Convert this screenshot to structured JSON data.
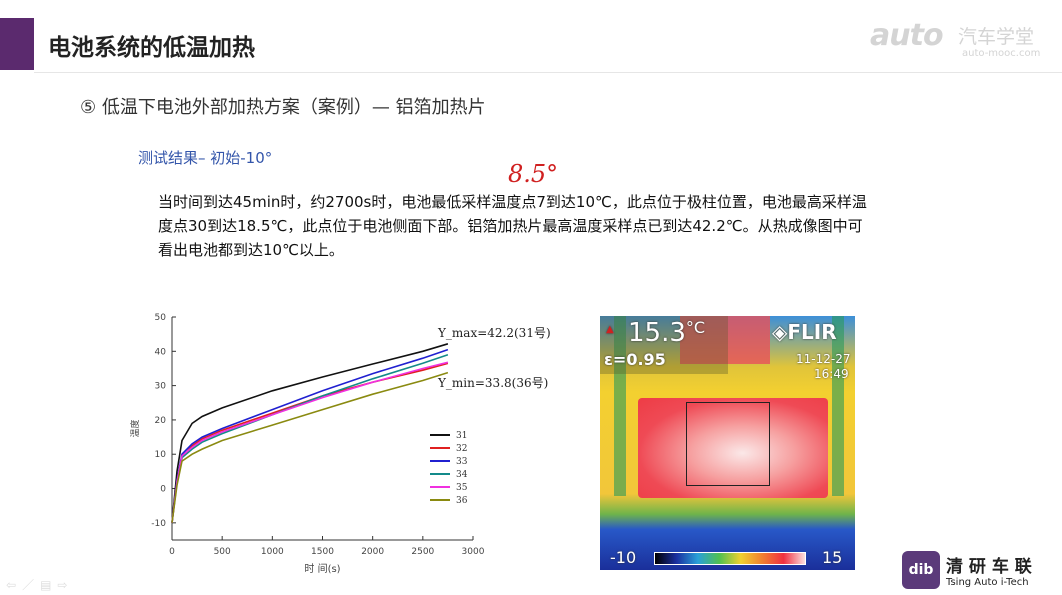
{
  "slide": {
    "title": "电池系统的低温加热",
    "subtitle": "⑤ 低温下电池外部加热方案（案例）— 铝箔加热片",
    "test_label": "测试结果– 初始-10°",
    "paragraph": "当时间到达45min时，约2700s时，电池最低采样温度点7到达10℃，此点位于极柱位置，电池最高采样温度点30到达18.5℃，此点位于电池侧面下部。铝箔加热片最高温度采样点已到达42.2℃。从热成像图中可看出电池都到达10℃以上。",
    "handwriting": "8.5°"
  },
  "logo": {
    "mark": "auto",
    "cn": "汽车学堂",
    "url": "auto-mooc.com"
  },
  "footer_logo": {
    "icon": "dib",
    "cn": "清 研 车 联",
    "en": "Tsing Auto i-Tech"
  },
  "nav_icons": [
    "arrow-left-icon",
    "pen-icon",
    "menu-icon",
    "arrow-right-icon"
  ],
  "thermal": {
    "temp": "15.3",
    "unit": "°C",
    "emissivity": "ε=0.95",
    "brand": "FLIR",
    "date": "11-12-27",
    "time": "16:49",
    "scale_min": "-10",
    "scale_max": "15"
  },
  "chart_data": {
    "type": "line",
    "xlabel": "时 间(s)",
    "ylabel": "温度",
    "xlim": [
      0,
      3000
    ],
    "ylim": [
      -15,
      50
    ],
    "xticks": [
      0,
      500,
      1000,
      1500,
      2000,
      2500,
      3000
    ],
    "yticks": [
      -10,
      0,
      10,
      20,
      30,
      40,
      50
    ],
    "annotations": [
      "Y_max=42.2(31号)",
      "Y_min=33.8(36号)"
    ],
    "legend_position": "right",
    "x": [
      0,
      50,
      100,
      200,
      300,
      500,
      1000,
      1500,
      2000,
      2500,
      2750
    ],
    "series": [
      {
        "name": "31",
        "color": "#111111",
        "values": [
          -10,
          5,
          14,
          19,
          21,
          23.5,
          28.5,
          32.5,
          36.3,
          40,
          42.2
        ]
      },
      {
        "name": "32",
        "color": "#e02020",
        "values": [
          -10,
          2,
          9,
          12.5,
          14.5,
          17,
          22,
          27,
          31,
          34.5,
          36.5
        ]
      },
      {
        "name": "33",
        "color": "#2020d0",
        "values": [
          -10,
          2.5,
          10,
          13,
          15,
          17.5,
          23,
          28.5,
          33.5,
          38,
          40.5
        ]
      },
      {
        "name": "34",
        "color": "#138a8a",
        "values": [
          -10,
          2,
          9,
          11.5,
          13.5,
          16,
          21.5,
          27,
          32,
          36.5,
          39
        ]
      },
      {
        "name": "35",
        "color": "#f030e0",
        "values": [
          -10,
          2,
          9.5,
          12,
          14,
          16.5,
          21.5,
          26.5,
          31,
          35,
          36.8
        ]
      },
      {
        "name": "36",
        "color": "#8a8a10",
        "values": [
          -10,
          1,
          8,
          10,
          11.5,
          14,
          18.5,
          23,
          27.5,
          31.5,
          33.8
        ]
      }
    ]
  }
}
